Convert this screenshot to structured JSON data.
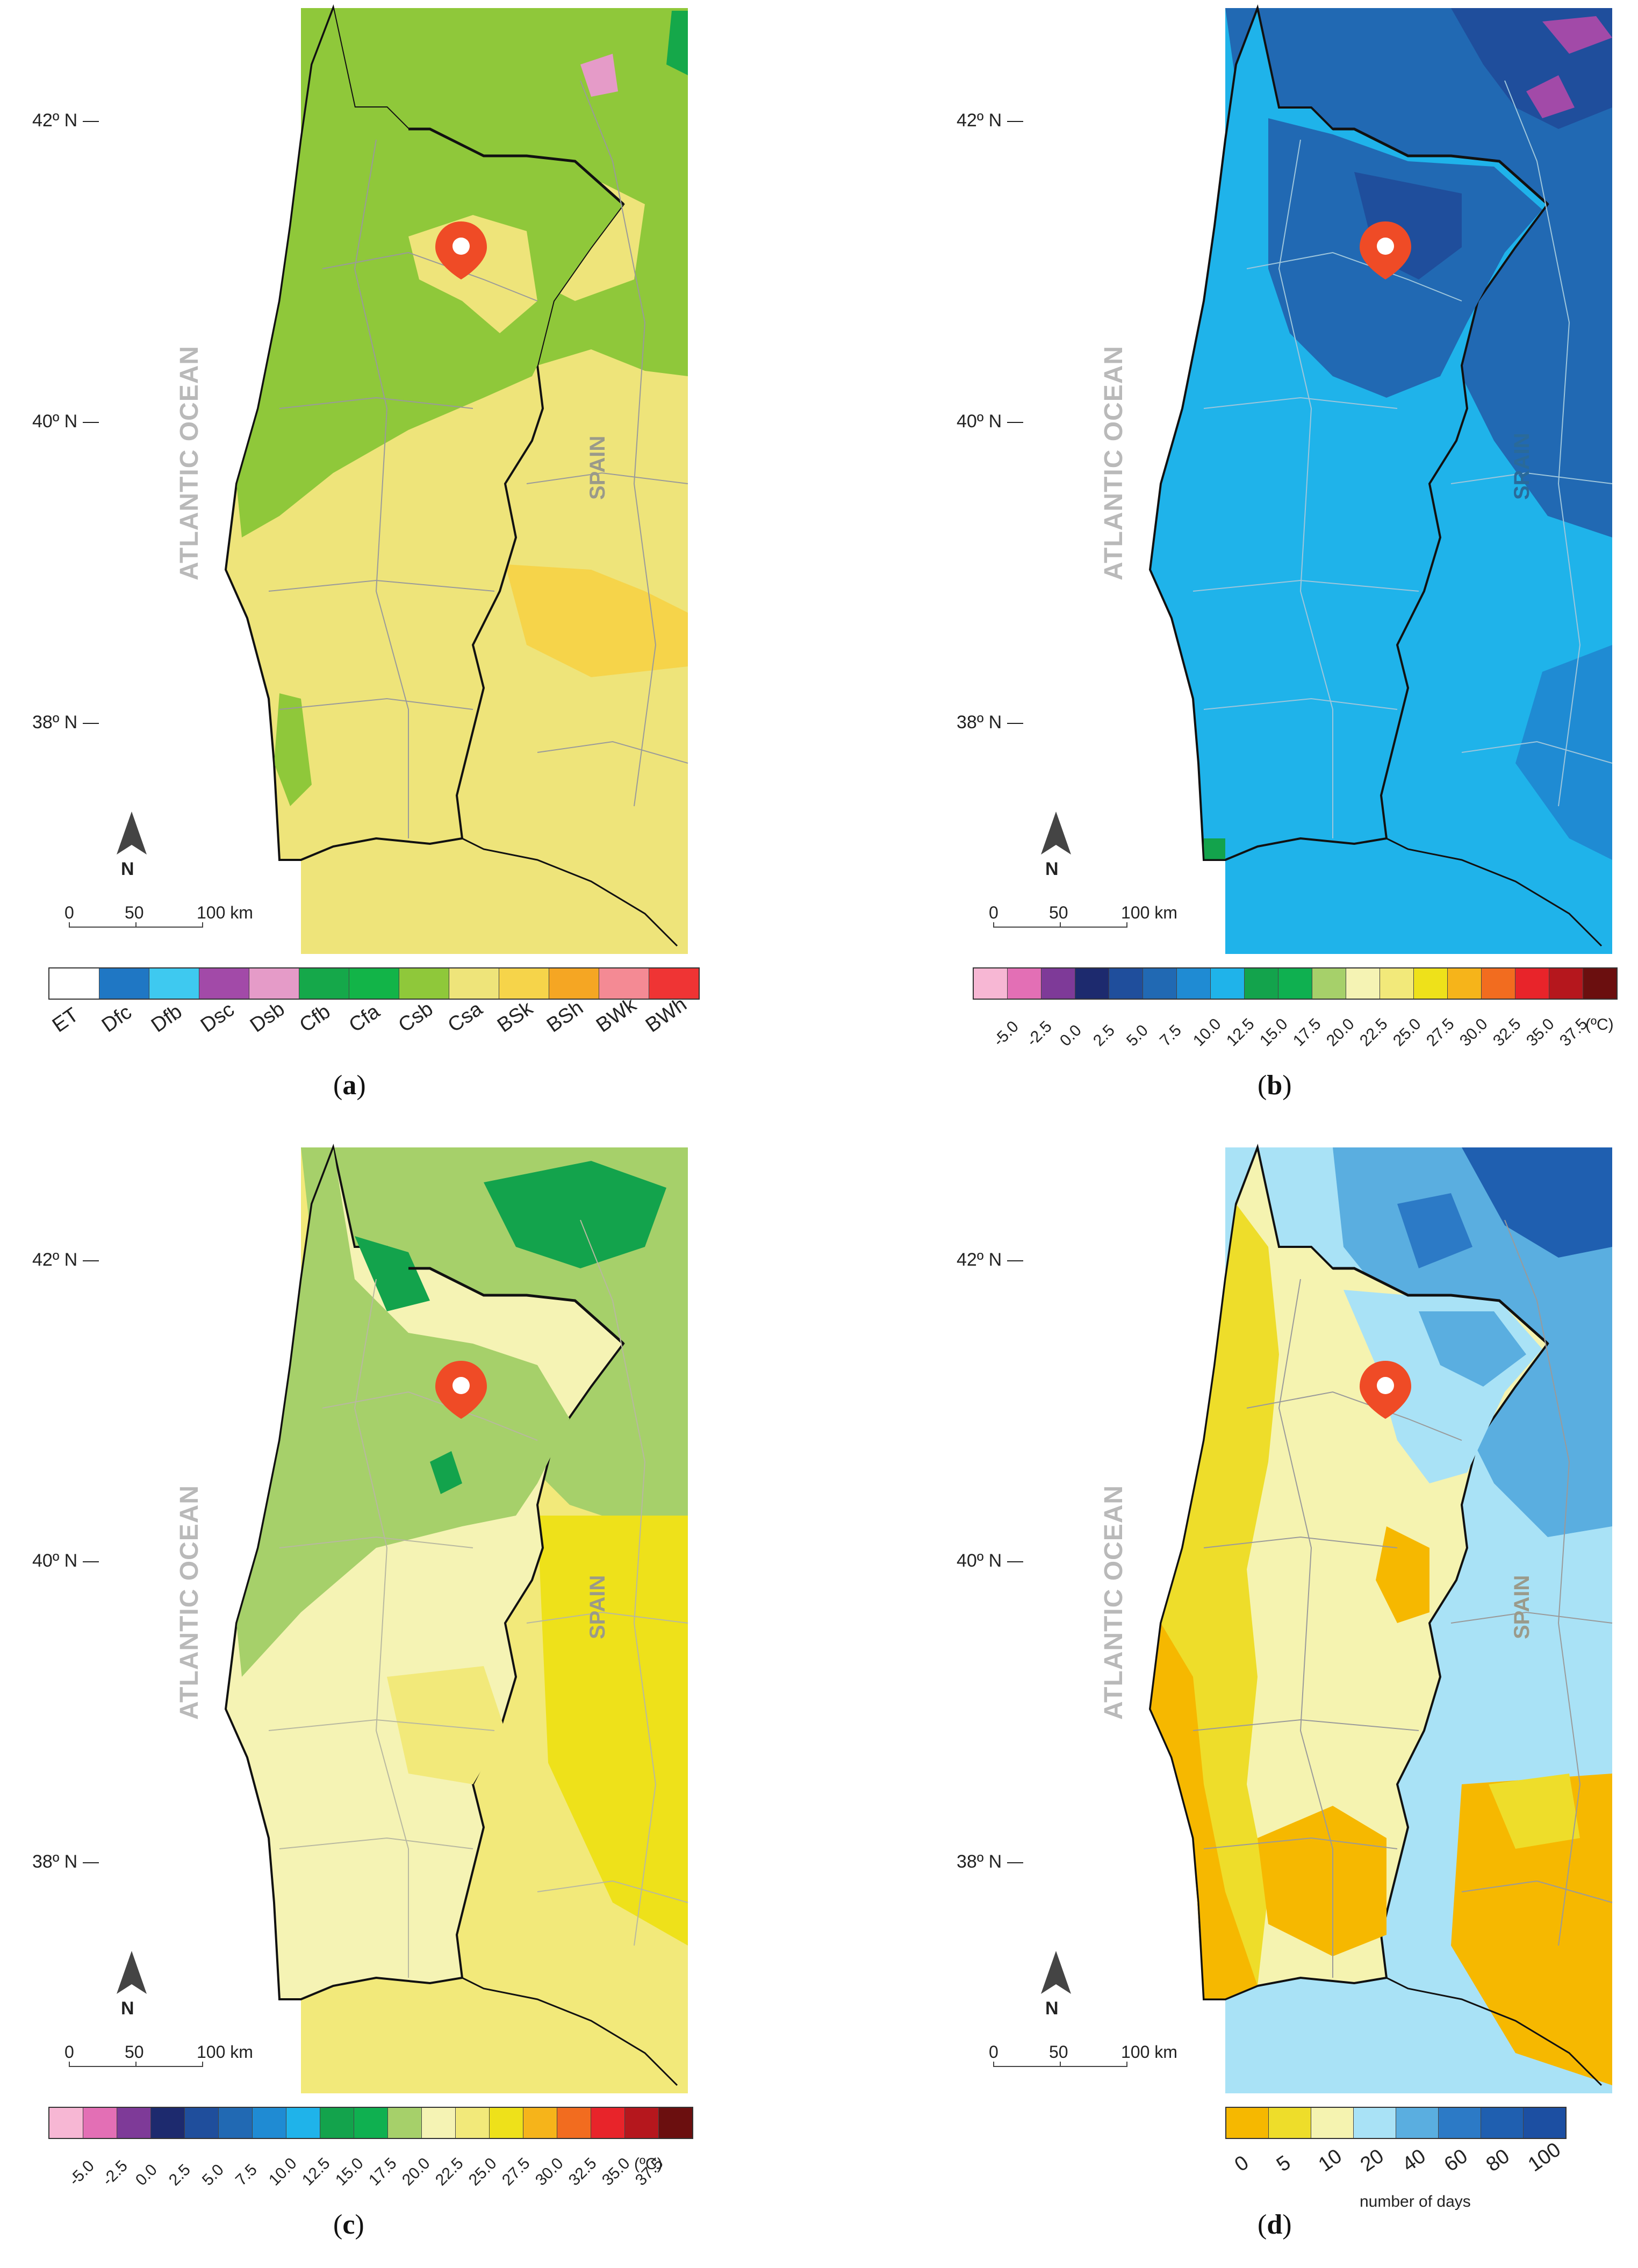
{
  "latitudes": [
    "42º N",
    "40º N",
    "38º N"
  ],
  "ocean_label": "ATLANTIC OCEAN",
  "country_label": "SPAIN",
  "country_label_b": "SRAIN",
  "north_label": "N",
  "scale": {
    "ticks": [
      "0",
      "50",
      "100 km"
    ]
  },
  "panels": {
    "a": {
      "caption_letter": "a",
      "legend": {
        "classes": [
          "ET",
          "Dfc",
          "Dfb",
          "Dsc",
          "Dsb",
          "Cfb",
          "Cfa",
          "Csb",
          "Csa",
          "BSk",
          "BSh",
          "BWk",
          "BWh"
        ],
        "colors": [
          "#ffffff",
          "#1f77c4",
          "#3ec9f0",
          "#a24aa8",
          "#e59bc8",
          "#15a84a",
          "#12b448",
          "#8fc83a",
          "#eee47a",
          "#f6d44a",
          "#f5a623",
          "#f48a94",
          "#ef3434"
        ]
      }
    },
    "b": {
      "caption_letter": "b",
      "unit": "(ºC)",
      "legend": {
        "labels": [
          "-5.0",
          "-2.5",
          "0.0",
          "2.5",
          "5.0",
          "7.5",
          "10.0",
          "12.5",
          "15.0",
          "17.5",
          "20.0",
          "22.5",
          "25.0",
          "27.5",
          "30.0",
          "32.5",
          "35.0",
          "37.5"
        ],
        "colors": [
          "#f7b7d4",
          "#e36fb5",
          "#7e3a98",
          "#1d2a6e",
          "#1f4e9c",
          "#2169b3",
          "#1f8bd3",
          "#1fb3ea",
          "#13a34c",
          "#0fb050",
          "#a6d06a",
          "#f5f3b4",
          "#f2e97a",
          "#eee11a",
          "#f6b41a",
          "#f26c1f",
          "#e8242a",
          "#b5171d",
          "#6b0f0f"
        ]
      }
    },
    "c": {
      "caption_letter": "c",
      "unit": "(ºC)",
      "legend": {
        "labels": [
          "-5.0",
          "-2.5",
          "0.0",
          "2.5",
          "5.0",
          "7.5",
          "10.0",
          "12.5",
          "15.0",
          "17.5",
          "20.0",
          "22.5",
          "25.0",
          "27.5",
          "30.0",
          "32.5",
          "35.0",
          "37.5"
        ],
        "colors": [
          "#f7b7d4",
          "#e36fb5",
          "#7e3a98",
          "#1d2a6e",
          "#1f4e9c",
          "#2169b3",
          "#1f8bd3",
          "#1fb3ea",
          "#13a34c",
          "#0fb050",
          "#a6d06a",
          "#f5f3b4",
          "#f2e97a",
          "#eee11a",
          "#f6b41a",
          "#f26c1f",
          "#e8242a",
          "#b5171d",
          "#6b0f0f"
        ]
      }
    },
    "d": {
      "caption_letter": "d",
      "legend_title": "number of days",
      "legend": {
        "labels": [
          "0",
          "5",
          "10",
          "20",
          "40",
          "60",
          "80",
          "100"
        ],
        "colors": [
          "#f6b800",
          "#eedd2a",
          "#f5f3b0",
          "#a9e2f6",
          "#5aaee0",
          "#2c7ac6",
          "#1f5fb0",
          "#1c4fa2"
        ]
      }
    }
  }
}
